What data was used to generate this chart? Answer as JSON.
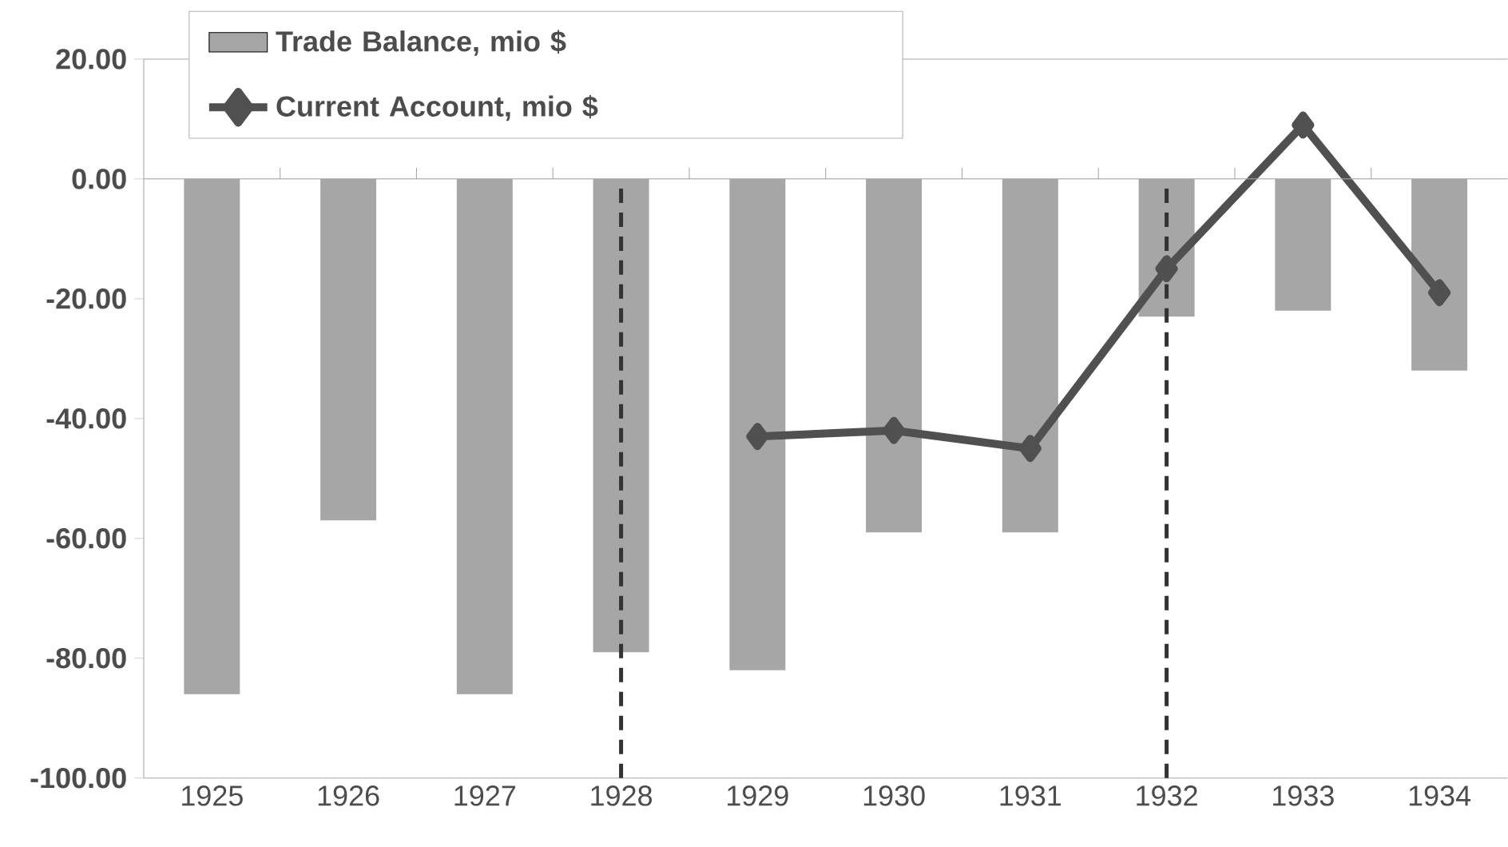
{
  "chart_data": {
    "type": "bar",
    "categories": [
      "1925",
      "1926",
      "1927",
      "1928",
      "1929",
      "1930",
      "1931",
      "1932",
      "1933",
      "1934"
    ],
    "series": [
      {
        "name": "Trade Balance, mio $",
        "color": "#a6a6a6",
        "values": [
          -86,
          -57,
          -86,
          -79,
          -82,
          -59,
          -59,
          -23,
          -22,
          -32
        ]
      },
      {
        "name": "Current Account, mio $",
        "type": "line",
        "color": "#505050",
        "marker": "diamond",
        "values": [
          null,
          null,
          null,
          null,
          -43,
          -42,
          -45,
          -15,
          9,
          -19
        ]
      }
    ],
    "ylim": [
      -100,
      20
    ],
    "yticks": [
      {
        "value": -100,
        "label": "-100.00"
      },
      {
        "value": -80,
        "label": "-80.00"
      },
      {
        "value": -60,
        "label": "-60.00"
      },
      {
        "value": -40,
        "label": "-40.00"
      },
      {
        "value": -20,
        "label": "-20.00"
      },
      {
        "value": 0,
        "label": "0.00"
      },
      {
        "value": 20,
        "label": "20.00"
      }
    ],
    "ref_lines": [
      {
        "axis": "x",
        "value": "1928",
        "color": "#333333",
        "line_style": "dashed"
      },
      {
        "axis": "x",
        "value": "1932",
        "color": "#333333",
        "line_style": "dashed"
      }
    ],
    "legend": "top left"
  }
}
